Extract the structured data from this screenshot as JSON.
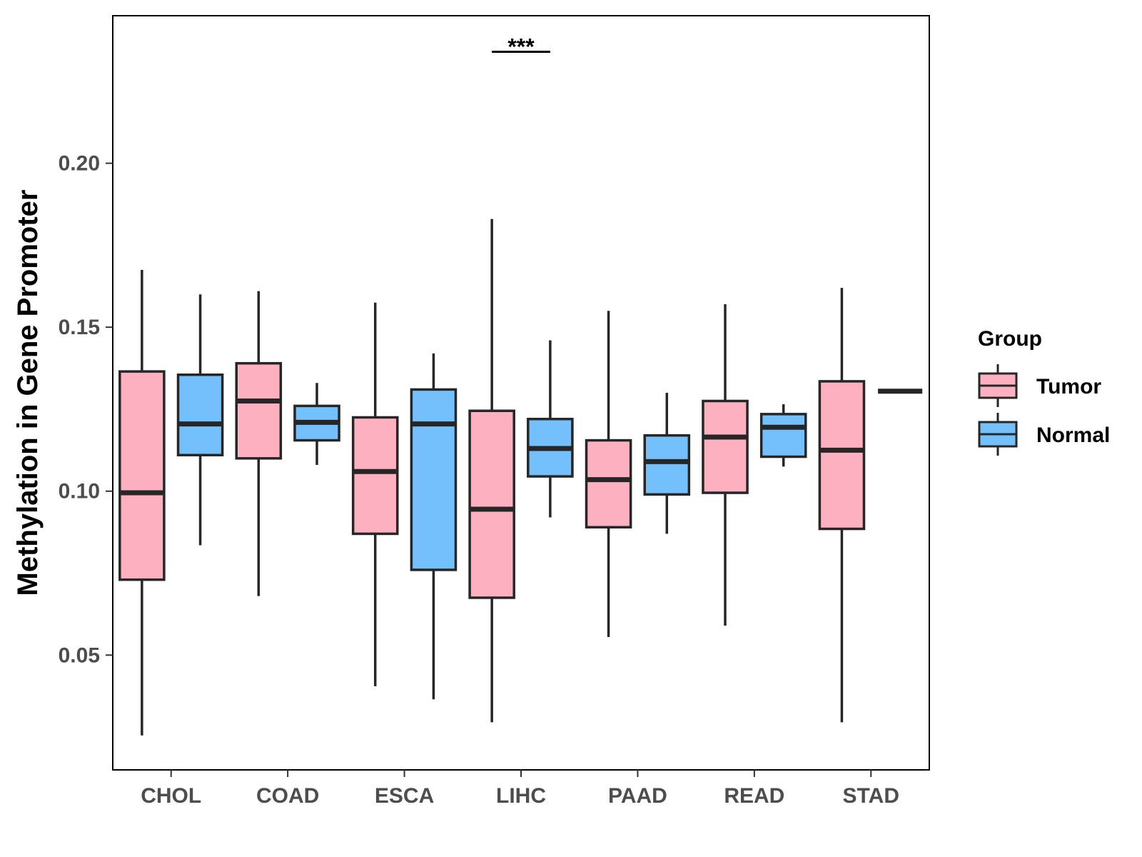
{
  "chart_data": {
    "type": "boxplot",
    "title": "",
    "xlabel": "",
    "ylabel": "Methylation in Gene Promoter",
    "ylim": [
      0.015,
      0.245
    ],
    "yticks": [
      0.05,
      0.1,
      0.15,
      0.2
    ],
    "ytick_labels": [
      "0.05",
      "0.10",
      "0.15",
      "0.20"
    ],
    "grid": false,
    "categories": [
      "CHOL",
      "COAD",
      "ESCA",
      "LIHC",
      "PAAD",
      "READ",
      "STAD"
    ],
    "legend": {
      "title": "Group",
      "position": "right",
      "entries": [
        {
          "label": "Tumor",
          "color": "#fdb0c0"
        },
        {
          "label": "Normal",
          "color": "#74c0fc"
        }
      ]
    },
    "series": [
      {
        "name": "Tumor",
        "color": "#fdb0c0",
        "boxes": [
          {
            "category": "CHOL",
            "min": 0.0255,
            "q1": 0.073,
            "median": 0.0995,
            "q3": 0.1365,
            "max": 0.1675
          },
          {
            "category": "COAD",
            "min": 0.068,
            "q1": 0.11,
            "median": 0.1275,
            "q3": 0.139,
            "max": 0.161
          },
          {
            "category": "ESCA",
            "min": 0.0405,
            "q1": 0.087,
            "median": 0.106,
            "q3": 0.1225,
            "max": 0.1575
          },
          {
            "category": "LIHC",
            "min": 0.0295,
            "q1": 0.0675,
            "median": 0.0945,
            "q3": 0.1245,
            "max": 0.183
          },
          {
            "category": "PAAD",
            "min": 0.0555,
            "q1": 0.089,
            "median": 0.1035,
            "q3": 0.1155,
            "max": 0.155
          },
          {
            "category": "READ",
            "min": 0.059,
            "q1": 0.0995,
            "median": 0.1165,
            "q3": 0.1275,
            "max": 0.157
          },
          {
            "category": "STAD",
            "min": 0.0295,
            "q1": 0.0885,
            "median": 0.1125,
            "q3": 0.1335,
            "max": 0.162
          }
        ]
      },
      {
        "name": "Normal",
        "color": "#74c0fc",
        "boxes": [
          {
            "category": "CHOL",
            "min": 0.0835,
            "q1": 0.111,
            "median": 0.1205,
            "q3": 0.1355,
            "max": 0.16
          },
          {
            "category": "COAD",
            "min": 0.108,
            "q1": 0.1155,
            "median": 0.121,
            "q3": 0.126,
            "max": 0.133
          },
          {
            "category": "ESCA",
            "min": 0.0365,
            "q1": 0.076,
            "median": 0.1205,
            "q3": 0.131,
            "max": 0.142
          },
          {
            "category": "LIHC",
            "min": 0.092,
            "q1": 0.1045,
            "median": 0.113,
            "q3": 0.122,
            "max": 0.146
          },
          {
            "category": "PAAD",
            "min": 0.087,
            "q1": 0.099,
            "median": 0.109,
            "q3": 0.117,
            "max": 0.13
          },
          {
            "category": "READ",
            "min": 0.1075,
            "q1": 0.1105,
            "median": 0.1195,
            "q3": 0.1235,
            "max": 0.1265
          },
          {
            "category": "STAD",
            "min": 0.1305,
            "q1": 0.1305,
            "median": 0.1305,
            "q3": 0.1305,
            "max": 0.1305
          }
        ]
      }
    ],
    "annotations": [
      {
        "category": "LIHC",
        "label": "***",
        "y": 0.234
      }
    ]
  }
}
